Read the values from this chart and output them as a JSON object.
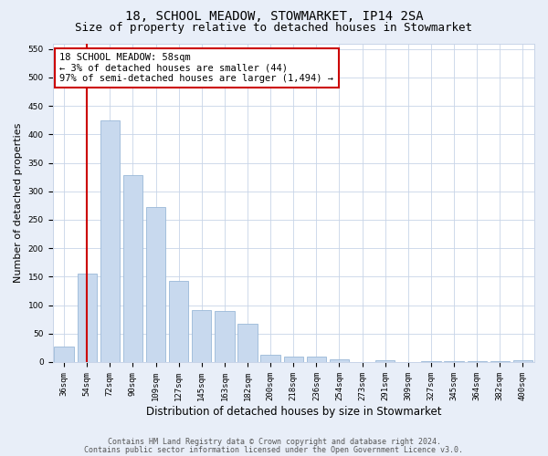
{
  "title": "18, SCHOOL MEADOW, STOWMARKET, IP14 2SA",
  "subtitle": "Size of property relative to detached houses in Stowmarket",
  "xlabel": "Distribution of detached houses by size in Stowmarket",
  "ylabel": "Number of detached properties",
  "categories": [
    "36sqm",
    "54sqm",
    "72sqm",
    "90sqm",
    "109sqm",
    "127sqm",
    "145sqm",
    "163sqm",
    "182sqm",
    "200sqm",
    "218sqm",
    "236sqm",
    "254sqm",
    "273sqm",
    "291sqm",
    "309sqm",
    "327sqm",
    "345sqm",
    "364sqm",
    "382sqm",
    "400sqm"
  ],
  "values": [
    27,
    155,
    425,
    328,
    272,
    143,
    92,
    90,
    68,
    13,
    10,
    9,
    4,
    0,
    3,
    0,
    1,
    1,
    1,
    1,
    3
  ],
  "bar_color": "#c8d9ee",
  "bar_edge_color": "#9ab8d8",
  "vline_x": 1,
  "vline_color": "#cc0000",
  "annotation_text": "18 SCHOOL MEADOW: 58sqm\n← 3% of detached houses are smaller (44)\n97% of semi-detached houses are larger (1,494) →",
  "annotation_box_color": "#ffffff",
  "annotation_box_edge": "#cc0000",
  "ylim": [
    0,
    560
  ],
  "yticks": [
    0,
    50,
    100,
    150,
    200,
    250,
    300,
    350,
    400,
    450,
    500,
    550
  ],
  "footer1": "Contains HM Land Registry data © Crown copyright and database right 2024.",
  "footer2": "Contains public sector information licensed under the Open Government Licence v3.0.",
  "background_color": "#e8eef8",
  "plot_bg_color": "#ffffff",
  "grid_color": "#c8d4e8",
  "title_fontsize": 10,
  "subtitle_fontsize": 9,
  "xlabel_fontsize": 8.5,
  "ylabel_fontsize": 8,
  "tick_fontsize": 6.5,
  "annotation_fontsize": 7.5,
  "footer_fontsize": 6
}
